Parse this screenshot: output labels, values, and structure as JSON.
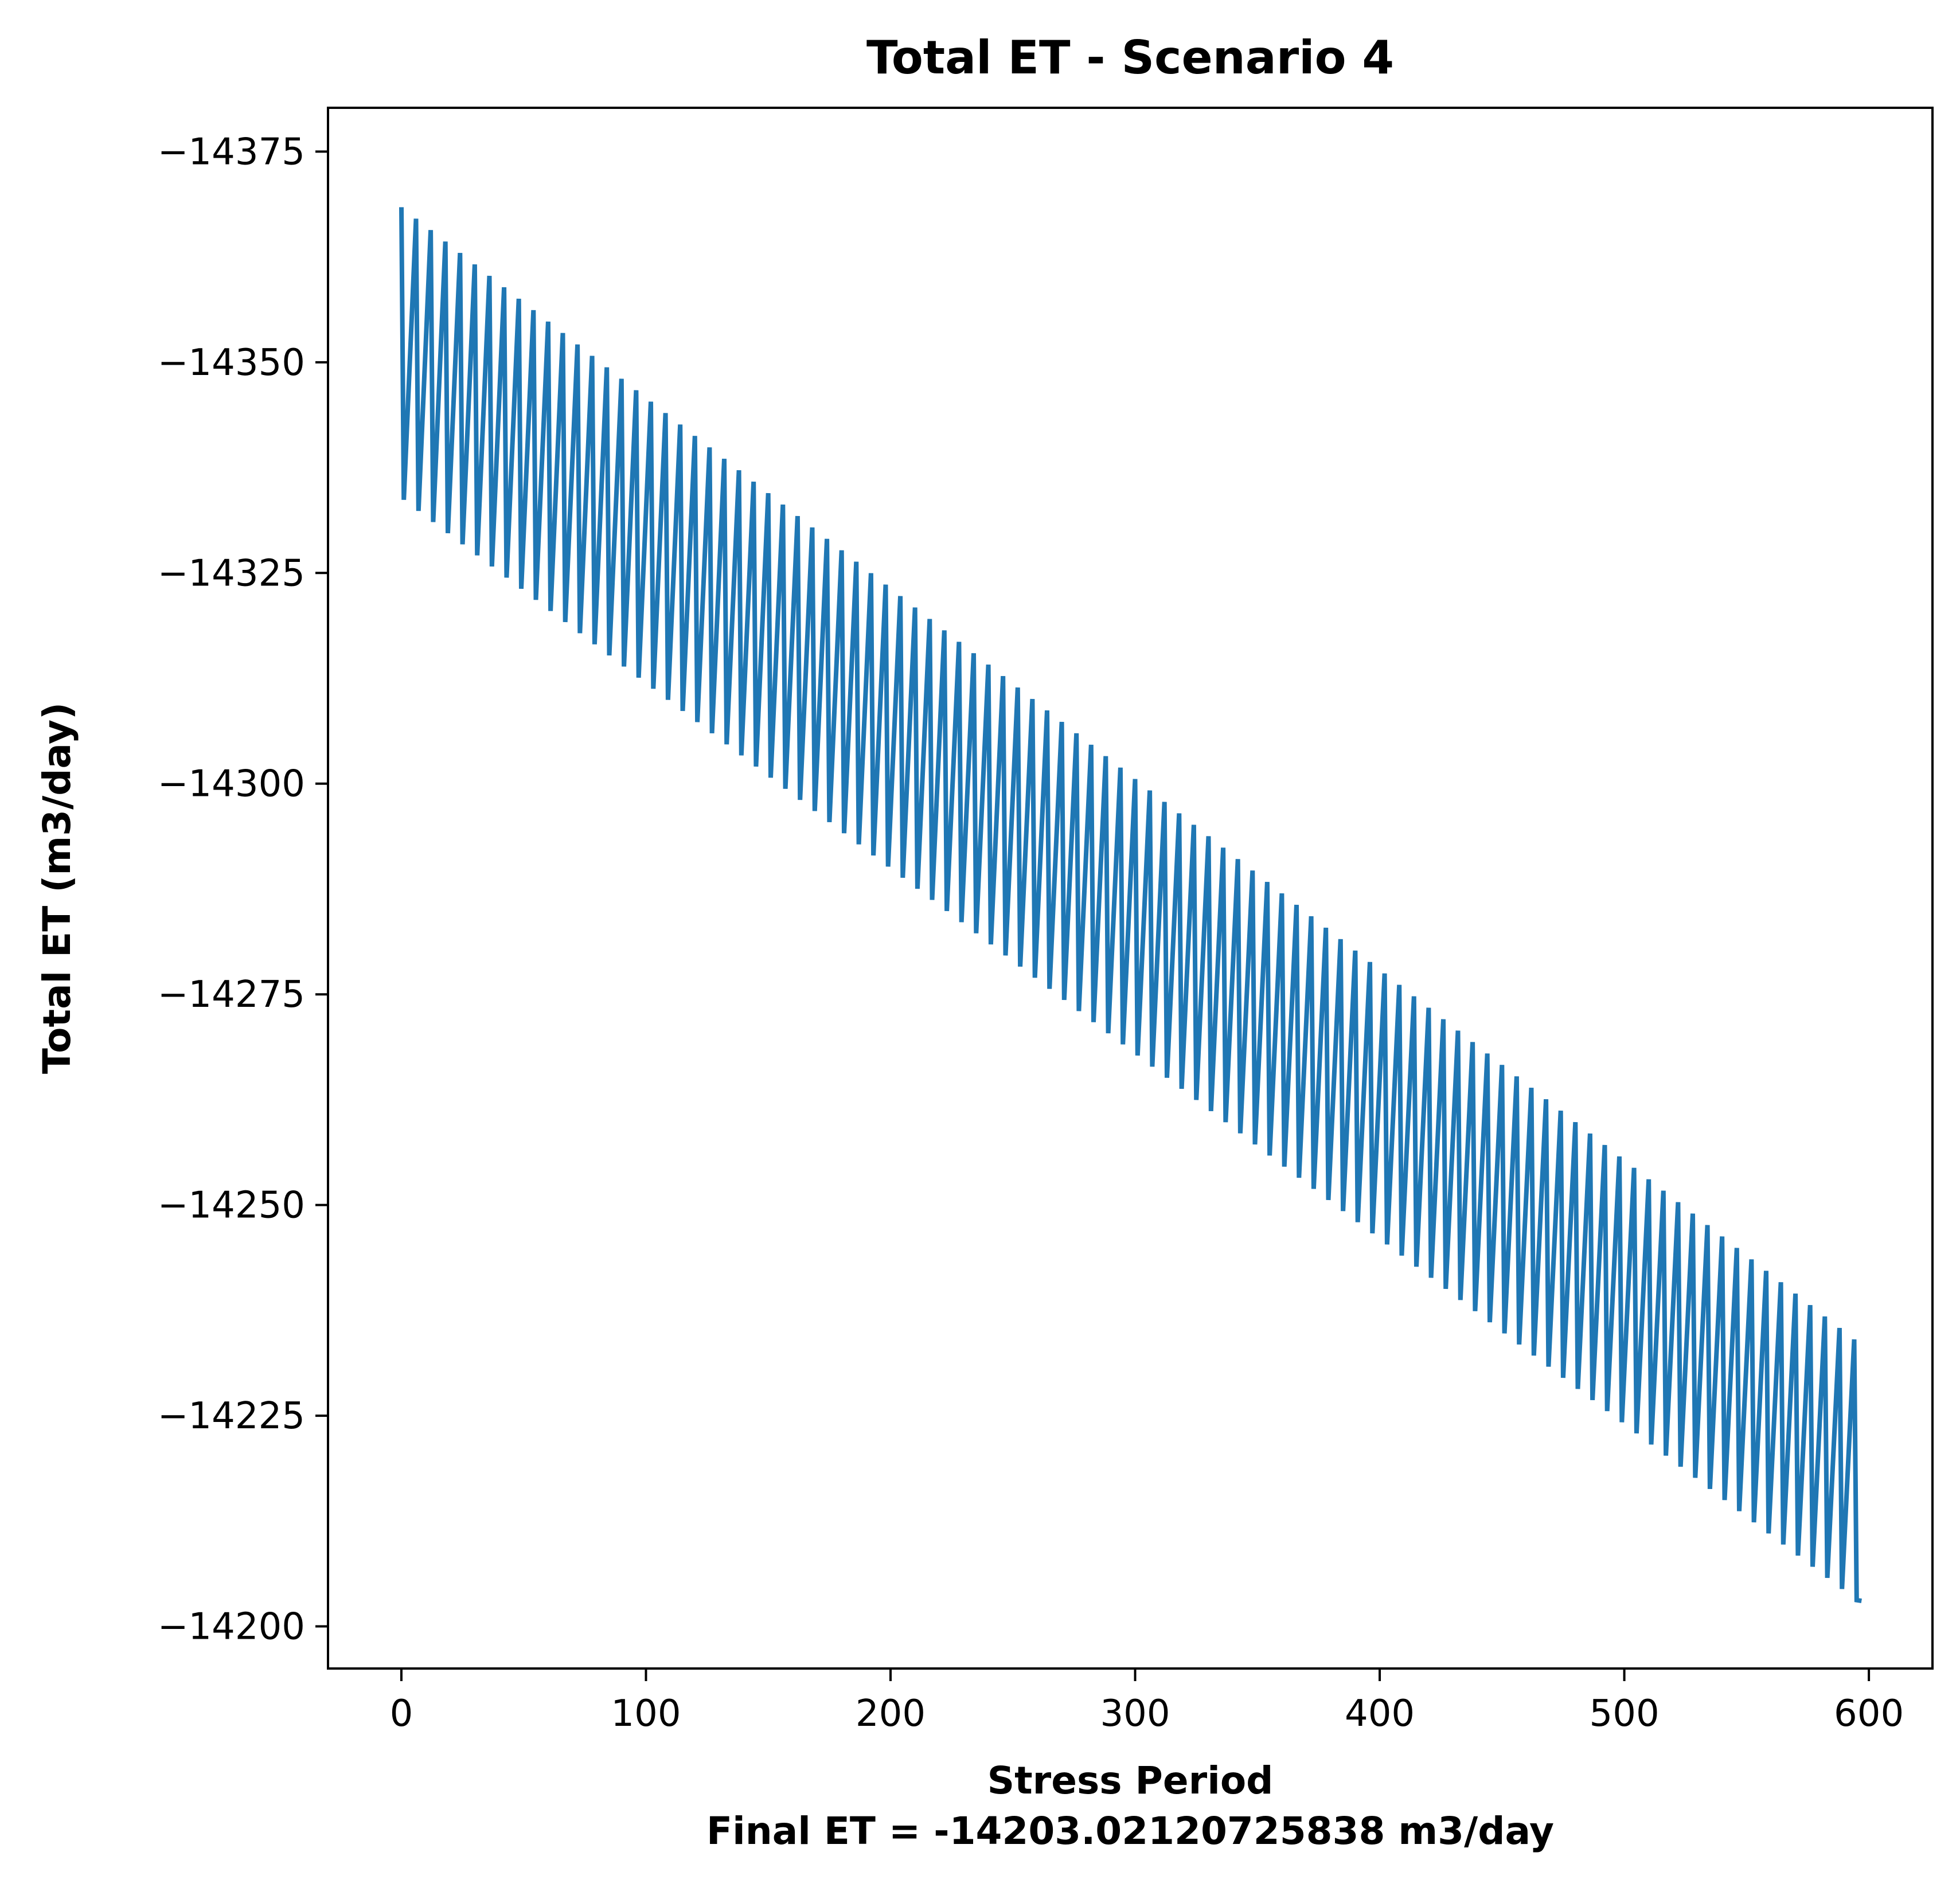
{
  "chart_data": {
    "type": "line",
    "title": "Total ET - Scenario 4",
    "xlabel": "Stress Period",
    "xlabel_note": "Final ET = -14203.02120725838 m3/day",
    "ylabel": "Total ET (m3/day)",
    "xlim": [
      -30,
      626
    ],
    "ylim": [
      -14380.2,
      -14195.0
    ],
    "y_inverted": true,
    "grid": false,
    "x_ticks": [
      0,
      100,
      200,
      300,
      400,
      500,
      600
    ],
    "y_ticks": [
      -14375,
      -14350,
      -14325,
      -14300,
      -14275,
      -14250,
      -14225,
      -14200
    ],
    "y_tick_labels": [
      "−14375",
      "−14350",
      "−14325",
      "−14300",
      "−14275",
      "−14250",
      "−14225",
      "−14200"
    ],
    "series": [
      {
        "color": "#1f77b4",
        "pattern": "sawtooth",
        "period": 6,
        "x_start": 0,
        "x_end": 596,
        "peaks_start": -14368.4,
        "peaks_end": -14233.6,
        "troughs_start": -14333.9,
        "troughs_end": -14202.9,
        "final_value": -14203.02
      }
    ]
  }
}
